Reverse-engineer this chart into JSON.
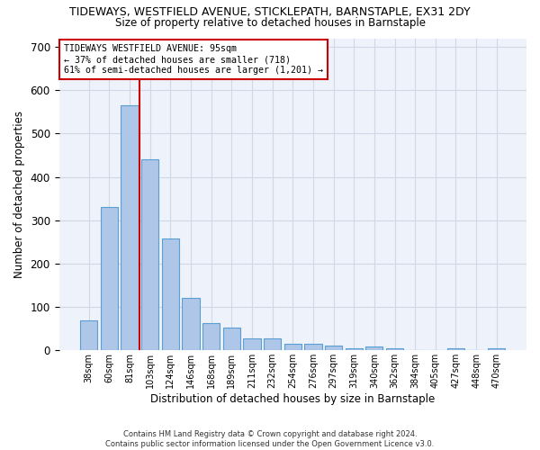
{
  "title1": "TIDEWAYS, WESTFIELD AVENUE, STICKLEPATH, BARNSTAPLE, EX31 2DY",
  "title2": "Size of property relative to detached houses in Barnstaple",
  "xlabel": "Distribution of detached houses by size in Barnstaple",
  "ylabel": "Number of detached properties",
  "footer1": "Contains HM Land Registry data © Crown copyright and database right 2024.",
  "footer2": "Contains public sector information licensed under the Open Government Licence v3.0.",
  "categories": [
    "38sqm",
    "60sqm",
    "81sqm",
    "103sqm",
    "124sqm",
    "146sqm",
    "168sqm",
    "189sqm",
    "211sqm",
    "232sqm",
    "254sqm",
    "276sqm",
    "297sqm",
    "319sqm",
    "340sqm",
    "362sqm",
    "384sqm",
    "405sqm",
    "427sqm",
    "448sqm",
    "470sqm"
  ],
  "values": [
    70,
    330,
    565,
    440,
    258,
    122,
    63,
    53,
    28,
    28,
    15,
    15,
    12,
    5,
    8,
    5,
    0,
    0,
    5,
    0,
    5
  ],
  "bar_color": "#aec6e8",
  "bar_edge_color": "#5a9fd4",
  "grid_color": "#d0d8e8",
  "background_color": "#eef2fa",
  "vline_color": "#cc0000",
  "annotation_title": "TIDEWAYS WESTFIELD AVENUE: 95sqm",
  "annotation_line1": "← 37% of detached houses are smaller (718)",
  "annotation_line2": "61% of semi-detached houses are larger (1,201) →",
  "annotation_box_color": "#cc0000",
  "ylim": [
    0,
    720
  ],
  "yticks": [
    0,
    100,
    200,
    300,
    400,
    500,
    600,
    700
  ]
}
